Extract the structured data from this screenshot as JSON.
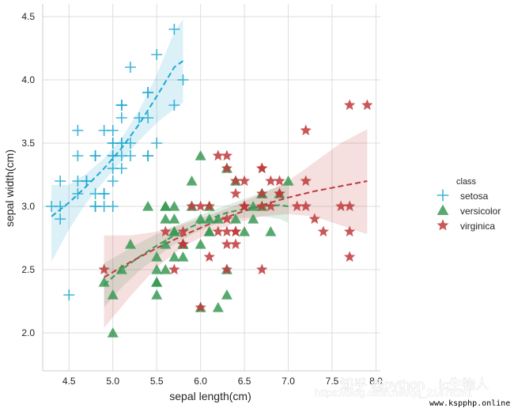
{
  "chart_data": {
    "type": "scatter",
    "title": "",
    "xlabel": "sepal length(cm)",
    "ylabel": "sepal width(cm)",
    "xlim": [
      4.2,
      8.05
    ],
    "ylim": [
      1.7,
      4.6
    ],
    "xticks": [
      4.5,
      5.0,
      5.5,
      6.0,
      6.5,
      7.0,
      7.5,
      8.0
    ],
    "xtick_labels": [
      "4.5",
      "5.0",
      "5.5",
      "6.0",
      "6.5",
      "7.0",
      "7.5",
      "8.0"
    ],
    "yticks": [
      2.0,
      2.5,
      3.0,
      3.5,
      4.0,
      4.5
    ],
    "ytick_labels": [
      "2.0",
      "2.5",
      "3.0",
      "3.5",
      "4.0",
      "4.5"
    ],
    "grid": true,
    "legend": {
      "title": "class",
      "placement": "right"
    },
    "series": [
      {
        "name": "setosa",
        "marker": "plus",
        "color": "#1fa8d0",
        "points": [
          [
            5.1,
            3.5
          ],
          [
            4.9,
            3.0
          ],
          [
            4.7,
            3.2
          ],
          [
            4.6,
            3.1
          ],
          [
            5.0,
            3.6
          ],
          [
            5.4,
            3.9
          ],
          [
            4.6,
            3.4
          ],
          [
            5.0,
            3.4
          ],
          [
            4.4,
            2.9
          ],
          [
            4.9,
            3.1
          ],
          [
            5.4,
            3.7
          ],
          [
            4.8,
            3.4
          ],
          [
            4.8,
            3.0
          ],
          [
            4.3,
            3.0
          ],
          [
            5.8,
            4.0
          ],
          [
            5.7,
            4.4
          ],
          [
            5.4,
            3.9
          ],
          [
            5.1,
            3.5
          ],
          [
            5.7,
            3.8
          ],
          [
            5.1,
            3.8
          ],
          [
            5.4,
            3.4
          ],
          [
            5.1,
            3.7
          ],
          [
            4.6,
            3.6
          ],
          [
            5.1,
            3.3
          ],
          [
            4.8,
            3.4
          ],
          [
            5.0,
            3.0
          ],
          [
            5.0,
            3.4
          ],
          [
            5.2,
            3.5
          ],
          [
            5.2,
            3.4
          ],
          [
            4.7,
            3.2
          ],
          [
            4.8,
            3.1
          ],
          [
            5.4,
            3.4
          ],
          [
            5.2,
            4.1
          ],
          [
            5.5,
            4.2
          ],
          [
            4.9,
            3.1
          ],
          [
            5.0,
            3.2
          ],
          [
            5.5,
            3.5
          ],
          [
            4.9,
            3.6
          ],
          [
            4.4,
            3.0
          ],
          [
            5.1,
            3.4
          ],
          [
            5.0,
            3.5
          ],
          [
            4.5,
            2.3
          ],
          [
            4.4,
            3.2
          ],
          [
            5.0,
            3.5
          ],
          [
            5.1,
            3.8
          ],
          [
            4.8,
            3.0
          ],
          [
            5.1,
            3.8
          ],
          [
            4.6,
            3.2
          ],
          [
            5.3,
            3.7
          ],
          [
            5.0,
            3.3
          ]
        ],
        "fit_curve": [
          [
            4.3,
            2.92
          ],
          [
            4.5,
            3.03
          ],
          [
            4.7,
            3.16
          ],
          [
            4.9,
            3.3
          ],
          [
            5.1,
            3.46
          ],
          [
            5.3,
            3.65
          ],
          [
            5.5,
            3.87
          ],
          [
            5.7,
            4.1
          ],
          [
            5.8,
            4.15
          ]
        ],
        "ci_upper": [
          [
            4.3,
            3.17
          ],
          [
            4.5,
            3.17
          ],
          [
            4.7,
            3.26
          ],
          [
            4.9,
            3.38
          ],
          [
            5.1,
            3.54
          ],
          [
            5.3,
            3.76
          ],
          [
            5.5,
            4.04
          ],
          [
            5.7,
            4.38
          ],
          [
            5.8,
            4.48
          ]
        ],
        "ci_lower": [
          [
            4.3,
            2.56
          ],
          [
            4.5,
            2.82
          ],
          [
            4.7,
            3.03
          ],
          [
            4.9,
            3.2
          ],
          [
            5.1,
            3.36
          ],
          [
            5.3,
            3.52
          ],
          [
            5.5,
            3.66
          ],
          [
            5.7,
            3.77
          ],
          [
            5.8,
            3.82
          ]
        ]
      },
      {
        "name": "versicolor",
        "marker": "triangle",
        "color": "#3a9a56",
        "points": [
          [
            7.0,
            3.2
          ],
          [
            6.4,
            3.2
          ],
          [
            6.9,
            3.1
          ],
          [
            5.5,
            2.3
          ],
          [
            6.5,
            2.8
          ],
          [
            5.7,
            2.8
          ],
          [
            6.3,
            3.3
          ],
          [
            4.9,
            2.4
          ],
          [
            6.6,
            2.9
          ],
          [
            5.2,
            2.7
          ],
          [
            5.0,
            2.0
          ],
          [
            5.9,
            3.0
          ],
          [
            6.0,
            2.2
          ],
          [
            6.1,
            2.9
          ],
          [
            5.6,
            2.9
          ],
          [
            6.7,
            3.1
          ],
          [
            5.6,
            3.0
          ],
          [
            5.8,
            2.7
          ],
          [
            6.2,
            2.2
          ],
          [
            5.6,
            2.5
          ],
          [
            5.9,
            3.2
          ],
          [
            6.1,
            2.8
          ],
          [
            6.3,
            2.5
          ],
          [
            6.1,
            2.8
          ],
          [
            6.4,
            2.9
          ],
          [
            6.6,
            3.0
          ],
          [
            6.8,
            2.8
          ],
          [
            6.7,
            3.0
          ],
          [
            6.0,
            2.9
          ],
          [
            5.7,
            2.6
          ],
          [
            5.5,
            2.4
          ],
          [
            5.5,
            2.4
          ],
          [
            5.8,
            2.7
          ],
          [
            6.0,
            2.7
          ],
          [
            5.4,
            3.0
          ],
          [
            6.0,
            3.4
          ],
          [
            6.7,
            3.1
          ],
          [
            6.3,
            2.3
          ],
          [
            5.6,
            3.0
          ],
          [
            5.5,
            2.5
          ],
          [
            5.5,
            2.6
          ],
          [
            6.1,
            3.0
          ],
          [
            5.8,
            2.6
          ],
          [
            5.0,
            2.3
          ],
          [
            5.6,
            2.7
          ],
          [
            5.7,
            3.0
          ],
          [
            5.7,
            2.9
          ],
          [
            6.2,
            2.9
          ],
          [
            5.1,
            2.5
          ],
          [
            5.7,
            2.8
          ]
        ],
        "fit_curve": [
          [
            4.9,
            2.38
          ],
          [
            5.1,
            2.5
          ],
          [
            5.3,
            2.6
          ],
          [
            5.5,
            2.69
          ],
          [
            5.7,
            2.77
          ],
          [
            5.9,
            2.84
          ],
          [
            6.1,
            2.9
          ],
          [
            6.3,
            2.95
          ],
          [
            6.5,
            2.98
          ],
          [
            6.7,
            3.0
          ],
          [
            6.9,
            3.01
          ],
          [
            7.0,
            3.0
          ]
        ],
        "ci_upper": [
          [
            4.9,
            2.55
          ],
          [
            5.1,
            2.63
          ],
          [
            5.3,
            2.71
          ],
          [
            5.5,
            2.78
          ],
          [
            5.7,
            2.84
          ],
          [
            5.9,
            2.9
          ],
          [
            6.1,
            2.96
          ],
          [
            6.3,
            3.01
          ],
          [
            6.5,
            3.06
          ],
          [
            6.7,
            3.11
          ],
          [
            6.9,
            3.16
          ],
          [
            7.0,
            3.2
          ]
        ],
        "ci_lower": [
          [
            4.9,
            2.2
          ],
          [
            5.1,
            2.36
          ],
          [
            5.3,
            2.49
          ],
          [
            5.5,
            2.6
          ],
          [
            5.7,
            2.7
          ],
          [
            5.9,
            2.78
          ],
          [
            6.1,
            2.84
          ],
          [
            6.3,
            2.89
          ],
          [
            6.5,
            2.91
          ],
          [
            6.7,
            2.92
          ],
          [
            6.9,
            2.9
          ],
          [
            7.0,
            2.87
          ]
        ]
      },
      {
        "name": "virginica",
        "marker": "star",
        "color": "#c0393b",
        "points": [
          [
            6.3,
            3.3
          ],
          [
            5.8,
            2.7
          ],
          [
            7.1,
            3.0
          ],
          [
            6.3,
            2.9
          ],
          [
            6.5,
            3.0
          ],
          [
            7.6,
            3.0
          ],
          [
            4.9,
            2.5
          ],
          [
            7.3,
            2.9
          ],
          [
            6.7,
            2.5
          ],
          [
            7.2,
            3.6
          ],
          [
            6.5,
            3.2
          ],
          [
            6.4,
            2.7
          ],
          [
            6.8,
            3.0
          ],
          [
            5.7,
            2.5
          ],
          [
            5.8,
            2.8
          ],
          [
            6.4,
            3.2
          ],
          [
            6.5,
            3.0
          ],
          [
            7.7,
            3.8
          ],
          [
            7.7,
            2.6
          ],
          [
            6.0,
            2.2
          ],
          [
            6.9,
            3.2
          ],
          [
            5.6,
            2.8
          ],
          [
            7.7,
            2.8
          ],
          [
            6.3,
            2.7
          ],
          [
            6.7,
            3.3
          ],
          [
            7.2,
            3.2
          ],
          [
            6.2,
            2.8
          ],
          [
            6.1,
            3.0
          ],
          [
            6.4,
            2.8
          ],
          [
            7.2,
            3.0
          ],
          [
            7.4,
            2.8
          ],
          [
            7.9,
            3.8
          ],
          [
            6.4,
            2.8
          ],
          [
            6.3,
            2.8
          ],
          [
            6.1,
            2.6
          ],
          [
            7.7,
            3.0
          ],
          [
            6.3,
            3.4
          ],
          [
            6.4,
            3.1
          ],
          [
            6.0,
            3.0
          ],
          [
            6.9,
            3.1
          ],
          [
            6.7,
            3.1
          ],
          [
            6.9,
            3.1
          ],
          [
            5.8,
            2.7
          ],
          [
            6.8,
            3.2
          ],
          [
            6.7,
            3.3
          ],
          [
            6.7,
            3.0
          ],
          [
            6.3,
            2.5
          ],
          [
            6.5,
            3.0
          ],
          [
            6.2,
            3.4
          ],
          [
            5.9,
            3.0
          ]
        ],
        "fit_curve": [
          [
            4.9,
            2.44
          ],
          [
            5.2,
            2.56
          ],
          [
            5.5,
            2.67
          ],
          [
            5.8,
            2.77
          ],
          [
            6.1,
            2.86
          ],
          [
            6.4,
            2.94
          ],
          [
            6.7,
            3.01
          ],
          [
            7.0,
            3.07
          ],
          [
            7.3,
            3.12
          ],
          [
            7.6,
            3.16
          ],
          [
            7.9,
            3.2
          ]
        ],
        "ci_upper": [
          [
            4.9,
            2.77
          ],
          [
            5.2,
            2.77
          ],
          [
            5.5,
            2.8
          ],
          [
            5.8,
            2.86
          ],
          [
            6.1,
            2.93
          ],
          [
            6.4,
            3.01
          ],
          [
            6.7,
            3.1
          ],
          [
            7.0,
            3.2
          ],
          [
            7.3,
            3.35
          ],
          [
            7.6,
            3.5
          ],
          [
            7.9,
            3.61
          ]
        ],
        "ci_lower": [
          [
            4.9,
            2.04
          ],
          [
            5.2,
            2.29
          ],
          [
            5.5,
            2.52
          ],
          [
            5.8,
            2.68
          ],
          [
            6.1,
            2.79
          ],
          [
            6.4,
            2.87
          ],
          [
            6.7,
            2.92
          ],
          [
            7.0,
            2.94
          ],
          [
            7.3,
            2.92
          ],
          [
            7.6,
            2.85
          ],
          [
            7.9,
            2.78
          ]
        ]
      }
    ]
  },
  "watermark": {
    "brand": "知乎 @python",
    "brand_suffix": "ic生物人",
    "url": "https://blog.csdn.net/qq_21478261"
  },
  "footer": {
    "site": "www.kspphp.online"
  }
}
